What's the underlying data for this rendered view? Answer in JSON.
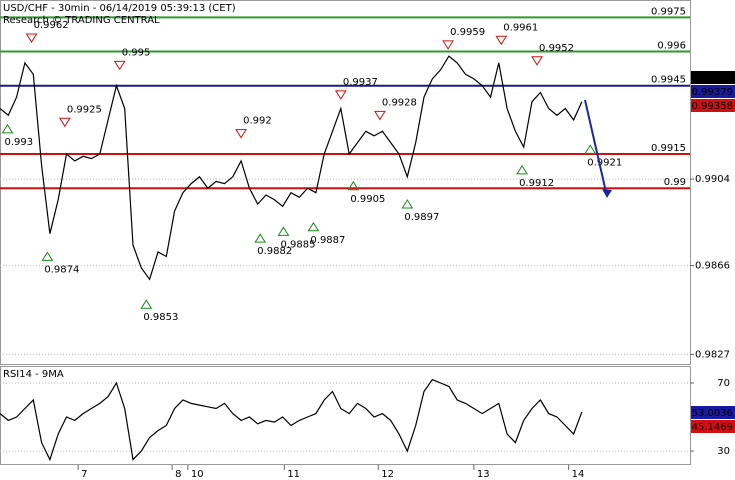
{
  "chart_data": [
    {
      "type": "line",
      "title": "USD/CHF - 30min - 06/14/2019 05:39:13 (CET)",
      "subtitle": "Research © TRADING CENTRAL",
      "x": [
        0,
        1,
        2,
        3,
        4,
        5,
        6,
        7,
        8,
        9,
        10,
        11,
        12,
        13,
        14,
        15,
        16,
        17,
        18,
        19,
        20,
        21,
        22,
        23,
        24,
        25,
        26,
        27,
        28,
        29,
        30,
        31,
        32,
        33,
        34,
        35,
        36,
        37,
        38,
        39,
        40,
        41,
        42,
        43,
        44,
        45,
        46,
        47,
        48,
        49,
        50,
        51,
        52,
        53,
        54,
        55,
        56,
        57,
        58,
        59,
        60,
        61,
        62,
        63,
        64,
        65,
        66,
        67,
        68,
        69,
        70
      ],
      "series": [
        {
          "color": "#000000",
          "values": [
            0.9935,
            0.9932,
            0.994,
            0.9955,
            0.995,
            0.991,
            0.988,
            0.9895,
            0.9915,
            0.9912,
            0.9914,
            0.9913,
            0.9915,
            0.993,
            0.9945,
            0.9935,
            0.9875,
            0.9865,
            0.986,
            0.9872,
            0.987,
            0.989,
            0.9898,
            0.9902,
            0.9905,
            0.99,
            0.9903,
            0.9902,
            0.9905,
            0.9912,
            0.99,
            0.9893,
            0.9897,
            0.9895,
            0.9892,
            0.9898,
            0.9896,
            0.99,
            0.9898,
            0.9915,
            0.9925,
            0.9935,
            0.9915,
            0.992,
            0.9925,
            0.9923,
            0.9925,
            0.992,
            0.9915,
            0.9905,
            0.992,
            0.994,
            0.9948,
            0.9952,
            0.9958,
            0.9955,
            0.995,
            0.9948,
            0.9945,
            0.994,
            0.9955,
            0.9935,
            0.9925,
            0.9918,
            0.9938,
            0.9942,
            0.9935,
            0.9932,
            0.9935,
            0.993,
            0.9938
          ]
        }
      ],
      "xlim": [
        0,
        83
      ],
      "ylim": [
        0.98228,
        0.99822
      ],
      "yticks": [
        0.9904,
        0.9866,
        0.9827
      ],
      "xticks": [
        {
          "value": 9.4,
          "label": "7"
        },
        {
          "value": 20.7,
          "label": "8"
        },
        {
          "value": 22.6,
          "label": "10"
        },
        {
          "value": 34.2,
          "label": "11"
        },
        {
          "value": 45.5,
          "label": "12"
        },
        {
          "value": 57,
          "label": "13"
        },
        {
          "value": 68.4,
          "label": "14"
        }
      ],
      "levels": [
        {
          "value": 0.9975,
          "color": "#2e9b2e"
        },
        {
          "value": 0.996,
          "color": "#2e9b2e"
        },
        {
          "value": 0.9945,
          "color": "#1a1a8c"
        },
        {
          "value": 0.9915,
          "color": "#d01010"
        },
        {
          "value": 0.99,
          "color": "#d01010"
        }
      ],
      "price_labels": [
        {
          "value": 0.99384,
          "color": "#000000"
        },
        {
          "value": 0.99379,
          "color": "#1a1aa0"
        },
        {
          "value": 0.99358,
          "color": "#d01010"
        }
      ],
      "annotations": [
        {
          "value": 0.9962,
          "x": 3.8,
          "pos": "above"
        },
        {
          "value": 0.993,
          "x": 0.9,
          "pos": "below"
        },
        {
          "value": 0.9925,
          "x": 7.8,
          "pos": "above"
        },
        {
          "value": 0.995,
          "x": 14.4,
          "pos": "above"
        },
        {
          "value": 0.9874,
          "x": 5.7,
          "pos": "below"
        },
        {
          "value": 0.9853,
          "x": 17.6,
          "pos": "below"
        },
        {
          "value": 0.992,
          "x": 29,
          "pos": "above"
        },
        {
          "value": 0.9882,
          "x": 31.3,
          "pos": "below"
        },
        {
          "value": 0.9885,
          "x": 34.1,
          "pos": "below"
        },
        {
          "value": 0.9887,
          "x": 37.7,
          "pos": "below"
        },
        {
          "value": 0.9937,
          "x": 41,
          "pos": "above"
        },
        {
          "value": 0.9905,
          "x": 42.5,
          "pos": "below"
        },
        {
          "value": 0.9928,
          "x": 45.7,
          "pos": "above"
        },
        {
          "value": 0.9897,
          "x": 49,
          "pos": "below"
        },
        {
          "value": 0.9959,
          "x": 53.9,
          "pos": "above"
        },
        {
          "value": 0.9961,
          "x": 60.3,
          "pos": "above"
        },
        {
          "value": 0.9952,
          "x": 64.6,
          "pos": "above"
        },
        {
          "value": 0.9912,
          "x": 62.8,
          "pos": "below"
        },
        {
          "value": 0.9921,
          "x": 71,
          "pos": "below"
        }
      ]
    },
    {
      "type": "line",
      "title": "RSI14 - 9MA",
      "x": [
        0,
        1,
        2,
        3,
        4,
        5,
        6,
        7,
        8,
        9,
        10,
        11,
        12,
        13,
        14,
        15,
        16,
        17,
        18,
        19,
        20,
        21,
        22,
        23,
        24,
        25,
        26,
        27,
        28,
        29,
        30,
        31,
        32,
        33,
        34,
        35,
        36,
        37,
        38,
        39,
        40,
        41,
        42,
        43,
        44,
        45,
        46,
        47,
        48,
        49,
        50,
        51,
        52,
        53,
        54,
        55,
        56,
        57,
        58,
        59,
        60,
        61,
        62,
        63,
        64,
        65,
        66,
        67,
        68,
        69,
        70
      ],
      "series": [
        {
          "color": "#000000",
          "values": [
            52,
            48,
            50,
            55,
            60,
            35,
            25,
            40,
            50,
            48,
            52,
            55,
            58,
            62,
            70,
            55,
            25,
            30,
            38,
            42,
            45,
            55,
            60,
            58,
            57,
            56,
            55,
            58,
            52,
            48,
            50,
            46,
            48,
            47,
            50,
            45,
            48,
            50,
            52,
            60,
            65,
            55,
            52,
            58,
            55,
            50,
            52,
            48,
            40,
            30,
            45,
            65,
            72,
            70,
            68,
            60,
            58,
            55,
            52,
            55,
            58,
            40,
            35,
            48,
            55,
            60,
            52,
            50,
            45,
            40,
            53
          ]
        }
      ],
      "xlim": [
        0,
        83
      ],
      "ylim": [
        22.4,
        79.4
      ],
      "yticks": [
        70,
        30
      ],
      "price_labels": [
        {
          "value": 53.0036,
          "color": "#1a1aa0"
        },
        {
          "value": 45.1469,
          "color": "#d01010"
        }
      ]
    }
  ]
}
